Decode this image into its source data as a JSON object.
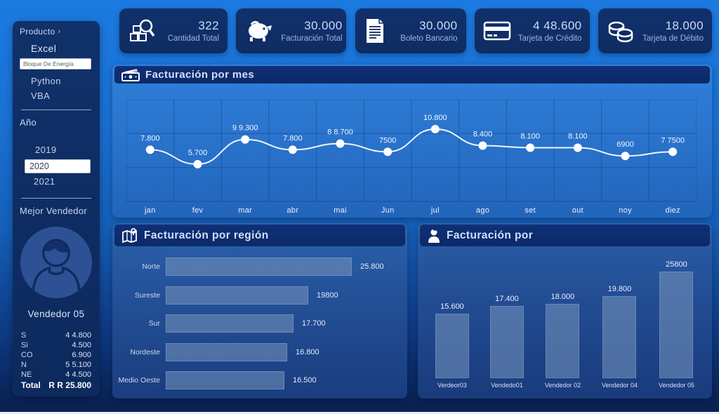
{
  "colors": {
    "background_top": "#1b7ae0",
    "background_bottom": "#0a2050",
    "panel_navy": "#0e2c62",
    "header_bar": "#0d2c6e",
    "line_panel": "#2a74cd",
    "bar_fill": "#5e81b0",
    "line_color": "#ffffff",
    "text_light": "#d4e1f7"
  },
  "sidebar": {
    "producto": {
      "label": "Producto",
      "chevron": "›",
      "items": [
        {
          "label": "Excel",
          "selected": false
        },
        {
          "label": "Bloque De Energía",
          "selected": true
        },
        {
          "label": "Python",
          "selected": false
        },
        {
          "label": "VBA",
          "selected": false
        }
      ]
    },
    "anio": {
      "label": "Año",
      "items": [
        {
          "label": "2019",
          "selected": false
        },
        {
          "label": "2020",
          "selected": true
        },
        {
          "label": "2021",
          "selected": false
        }
      ]
    },
    "mejor_vendedor": {
      "label": "Mejor Vendedor",
      "name": "Vendedor 05",
      "stats": [
        {
          "label": "S",
          "value": "4 4.800"
        },
        {
          "label": "Si",
          "value": "4.500"
        },
        {
          "label": "CO",
          "value": "6.900"
        },
        {
          "label": "N",
          "value": "5 5.100"
        },
        {
          "label": "NE",
          "value": "4 4.500"
        }
      ],
      "total_label": "Total",
      "total_value": "R R 25.800"
    }
  },
  "kpis": [
    {
      "icon": "boxes-search-icon",
      "value": "322",
      "label": "Cantidad Total"
    },
    {
      "icon": "piggy-bank-icon",
      "value": "30.000",
      "label": "Facturación Total"
    },
    {
      "icon": "document-icon",
      "value": "30.000",
      "label": "Boleto Bancario"
    },
    {
      "icon": "credit-card-icon",
      "value": "4 48.600",
      "label": "Tarjeta de Crédito"
    },
    {
      "icon": "coins-icon",
      "value": "18.000",
      "label": "Tarjeta de Débito"
    }
  ],
  "chart_data": [
    {
      "type": "line",
      "title": "Facturación por mes",
      "icon": "money-bill-icon",
      "categories": [
        "jan",
        "fev",
        "mar",
        "abr",
        "mai",
        "Jun",
        "jul",
        "ago",
        "set",
        "out",
        "noy",
        "diez"
      ],
      "values": [
        7800,
        5700,
        9300,
        7800,
        8700,
        7500,
        10800,
        8400,
        8100,
        8100,
        6900,
        7500
      ],
      "point_labels": [
        "7.800",
        "5.700",
        "9 9.300",
        "7.800",
        "8 8.700",
        "7500",
        "10.800",
        "8.400",
        "8.100",
        "8.100",
        "6900",
        "7 7500"
      ],
      "grid": true,
      "legend": "none",
      "ylim": [
        4200,
        12200
      ]
    },
    {
      "type": "bar",
      "orientation": "horizontal",
      "title": "Facturación por región",
      "icon": "map-icon",
      "categories": [
        "Norte",
        "Sureste",
        "Sur",
        "Nordeste",
        "Medio Oeste"
      ],
      "values": [
        25800,
        19800,
        17700,
        16800,
        16500
      ],
      "value_labels": [
        "25.800",
        "19800",
        "17.700",
        "16.800",
        "16.500"
      ],
      "grid": false,
      "legend": "none"
    },
    {
      "type": "bar",
      "orientation": "vertical",
      "title": "Facturación por",
      "icon": "person-icon",
      "categories": [
        "Verdeor03",
        "Vendedo01",
        "Vendedor 02",
        "Vendedor 04",
        "Vendedor 05"
      ],
      "values": [
        15600,
        17400,
        18000,
        19800,
        25800
      ],
      "value_labels": [
        "15.600",
        "17.400",
        "18.000",
        "19.800",
        "25800"
      ],
      "grid": false,
      "legend": "none"
    }
  ]
}
